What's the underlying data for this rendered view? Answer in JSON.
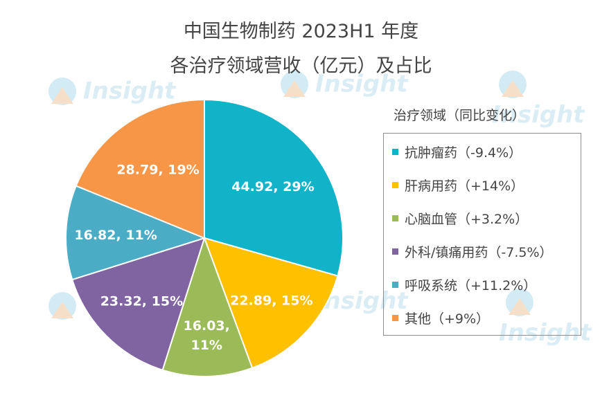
{
  "chart_data": {
    "type": "pie",
    "title": "中国生物制药 2023H1 年度",
    "subtitle": "各治疗领域营收（亿元）及占比",
    "legend_title": "治疗领域（同比变化）",
    "legend_position": "right",
    "slices": [
      {
        "name": "抗肿瘤药（-9.4%）",
        "value": 44.92,
        "percent": "29%",
        "label": "44.92, 29%",
        "color": "#10B3C8"
      },
      {
        "name": "肝病用药（+14%）",
        "value": 22.89,
        "percent": "15%",
        "label": "22.89, 15%",
        "color": "#FFC000"
      },
      {
        "name": "心脑血管（+3.2%）",
        "value": 16.03,
        "percent": "11%",
        "label": "16.03, 11%",
        "label_lines": [
          "16.03,",
          "11%"
        ],
        "color": "#9BBB59"
      },
      {
        "name": "外科/镇痛用药（-7.5%）",
        "value": 23.32,
        "percent": "15%",
        "label": "23.32, 15%",
        "color": "#8064A2"
      },
      {
        "name": "呼吸系统（+11.2%）",
        "value": 16.82,
        "percent": "11%",
        "label": "16.82, 11%",
        "color": "#4BACC6"
      },
      {
        "name": "其他（+9%）",
        "value": 28.79,
        "percent": "19%",
        "label": "28.79, 19%",
        "color": "#F79646"
      }
    ]
  },
  "watermark": {
    "text": "Insight"
  }
}
